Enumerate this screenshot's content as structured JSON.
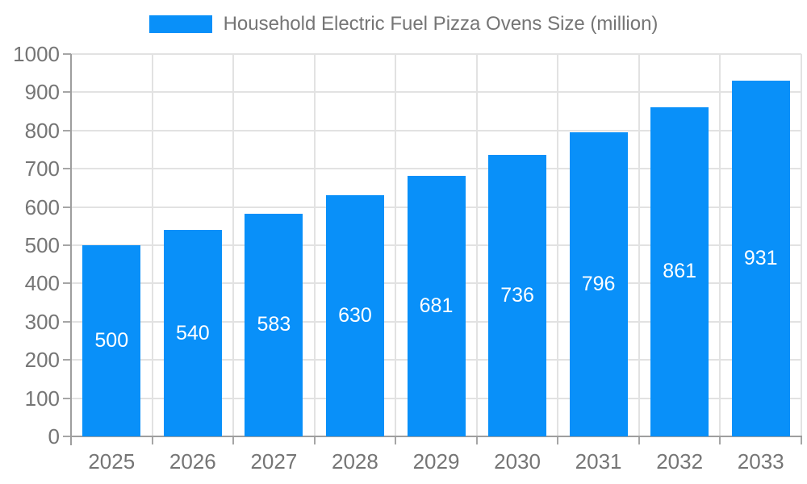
{
  "chart_data": {
    "type": "bar",
    "title": "Household Electric Fuel Pizza Ovens Size (million)",
    "series_name": "Household Electric Fuel Pizza Ovens Size (million)",
    "categories": [
      "2025",
      "2026",
      "2027",
      "2028",
      "2029",
      "2030",
      "2031",
      "2032",
      "2033"
    ],
    "values": [
      500,
      540,
      583,
      630,
      681,
      736,
      796,
      861,
      931
    ],
    "bar_labels": [
      "500",
      "540",
      "583",
      "630",
      "681",
      "736",
      "796",
      "861",
      "931"
    ],
    "xlabel": "",
    "ylabel": "",
    "ylim": [
      0,
      1000
    ],
    "ytick_step": 100,
    "yticks": [
      0,
      100,
      200,
      300,
      400,
      500,
      600,
      700,
      800,
      900,
      1000
    ],
    "grid": true,
    "legend_position": "top-center",
    "colors": {
      "bar": "#0990f9",
      "bar_label_text": "#ffffff",
      "axis_text": "#757575",
      "grid_line": "#e2e2e2",
      "axis_line": "#9e9e9e",
      "tick_mark": "#a6a6a6",
      "background": "#ffffff"
    }
  }
}
